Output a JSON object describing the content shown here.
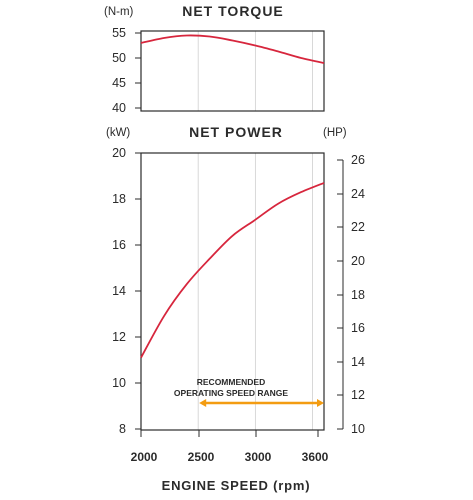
{
  "chart_data": [
    {
      "type": "line",
      "title": "NET TORQUE",
      "y_unit": "(N-m)",
      "x_range": [
        2000,
        3600
      ],
      "ylim": [
        40,
        55
      ],
      "y_ticks": [
        "55",
        "50",
        "45",
        "40"
      ],
      "x_gridlines": [
        2500,
        3000,
        3500
      ],
      "grid": true,
      "series": [
        {
          "x": [
            2000,
            2200,
            2400,
            2600,
            2800,
            3000,
            3200,
            3400,
            3600
          ],
          "values": [
            53.0,
            54.0,
            54.5,
            54.3,
            53.5,
            52.5,
            51.3,
            50.0,
            49.0
          ]
        }
      ]
    },
    {
      "type": "line",
      "title": "NET POWER",
      "y_unit": "(kW)",
      "y2_unit": "(HP)",
      "x_range": [
        2000,
        3600
      ],
      "ylim": [
        8,
        20
      ],
      "y2lim": [
        10,
        26
      ],
      "y_ticks": [
        "20",
        "18",
        "16",
        "14",
        "12",
        "10",
        "8"
      ],
      "y2_ticks": [
        "26",
        "24",
        "22",
        "20",
        "18",
        "16",
        "14",
        "12",
        "10"
      ],
      "x_ticks": [
        "2000",
        "2500",
        "3000",
        "3600"
      ],
      "xlabel": "ENGINE SPEED (rpm)",
      "grid": true,
      "series": [
        {
          "x": [
            2000,
            2200,
            2400,
            2600,
            2800,
            3000,
            3200,
            3400,
            3600
          ],
          "values": [
            11.1,
            12.9,
            14.3,
            15.4,
            16.4,
            17.1,
            17.8,
            18.3,
            18.7
          ]
        }
      ],
      "annotation": {
        "lines": [
          "RECOMMENDED",
          "OPERATING SPEED RANGE"
        ],
        "range": [
          2500,
          3600
        ]
      }
    }
  ],
  "colors": {
    "curve": "#d7263d",
    "arrow": "#f39c12",
    "grid": "#cfcfcf",
    "axis": "#2b2b2b"
  }
}
